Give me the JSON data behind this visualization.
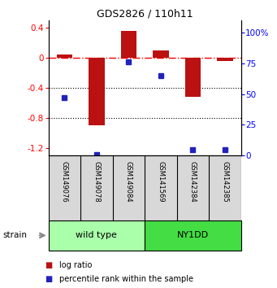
{
  "title": "GDS2826 / 110h11",
  "samples": [
    "GSM149076",
    "GSM149078",
    "GSM149084",
    "GSM141569",
    "GSM142384",
    "GSM142385"
  ],
  "log_ratios": [
    0.04,
    -0.9,
    0.36,
    0.1,
    -0.52,
    -0.04
  ],
  "percentile_ranks": [
    47,
    1,
    76,
    65,
    5,
    5
  ],
  "groups": [
    {
      "label": "wild type",
      "start": 0,
      "end": 3,
      "color": "#aaffaa"
    },
    {
      "label": "NY1DD",
      "start": 3,
      "end": 6,
      "color": "#44dd44"
    }
  ],
  "bar_color": "#bb1111",
  "dot_color": "#2222bb",
  "ylim_left": [
    -1.3,
    0.5
  ],
  "ylim_right": [
    0,
    110
  ],
  "yticks_left": [
    -1.2,
    -0.8,
    -0.4,
    0.0,
    0.4
  ],
  "yticks_right": [
    0,
    25,
    50,
    75,
    100
  ],
  "hline_y": 0.0,
  "dotted_lines": [
    -0.4,
    -0.8
  ],
  "background_color": "#ffffff",
  "legend_red_label": "log ratio",
  "legend_blue_label": "percentile rank within the sample"
}
